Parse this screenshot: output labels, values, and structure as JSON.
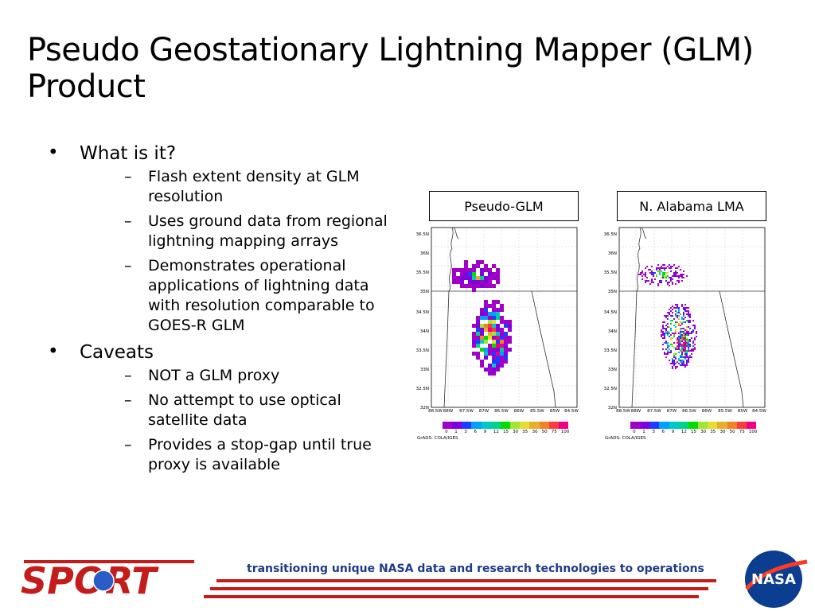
{
  "title": "Pseudo Geostationary Lightning Mapper (GLM) Product",
  "bullets": [
    {
      "text": "What is it?",
      "subs": [
        "Flash extent density at GLM resolution",
        "Uses ground data from regional lightning mapping arrays",
        "Demonstrates operational applications of lightning data with resolution comparable to GOES-R GLM"
      ]
    },
    {
      "text": "Caveats",
      "subs": [
        "NOT a GLM proxy",
        "No attempt to use optical satellite data",
        "Provides a stop-gap until true proxy is available"
      ]
    }
  ],
  "bullet_glyph": "•",
  "dash_glyph": "–",
  "panels": [
    {
      "label": "Pseudo-GLM"
    },
    {
      "label": "N. Alabama LMA"
    }
  ],
  "map": {
    "lat_labels": [
      "36.5N",
      "36N",
      "35.5N",
      "35N",
      "34.5N",
      "34N",
      "33.5N",
      "33N",
      "32.5N",
      "32N"
    ],
    "lon_labels": [
      "88.5W",
      "88W",
      "87.5W",
      "87W",
      "86.5W",
      "86W",
      "85.5W",
      "85W",
      "84.5W"
    ],
    "colorbar_labels": [
      "0",
      "1",
      "3",
      "6",
      "9",
      "12",
      "15",
      "30",
      "35",
      "30",
      "50",
      "75",
      "100"
    ],
    "colorbar_labels_right": [
      "0",
      "1",
      "3",
      "6",
      "9",
      "12",
      "15",
      "30",
      "35",
      "30",
      "50",
      "75",
      "100"
    ],
    "credit": "GrADS: COLA/IGES",
    "colorbar_colors": [
      "#a000c8",
      "#8200dc",
      "#1e3cff",
      "#00a0ff",
      "#00c8c8",
      "#00d28c",
      "#00dc00",
      "#a0e632",
      "#e6dc32",
      "#e6af2d",
      "#f08228",
      "#fa3c3c",
      "#f00082"
    ]
  },
  "footer": {
    "tagline": "transitioning unique NASA data and research technologies to operations",
    "sport_logo_text": "SPORT",
    "nasa_logo_text": "NASA"
  },
  "colors": {
    "footer_text": "#1f3a8a",
    "red_accent": "#c41b1b",
    "nasa_blue": "#0b3d91"
  }
}
